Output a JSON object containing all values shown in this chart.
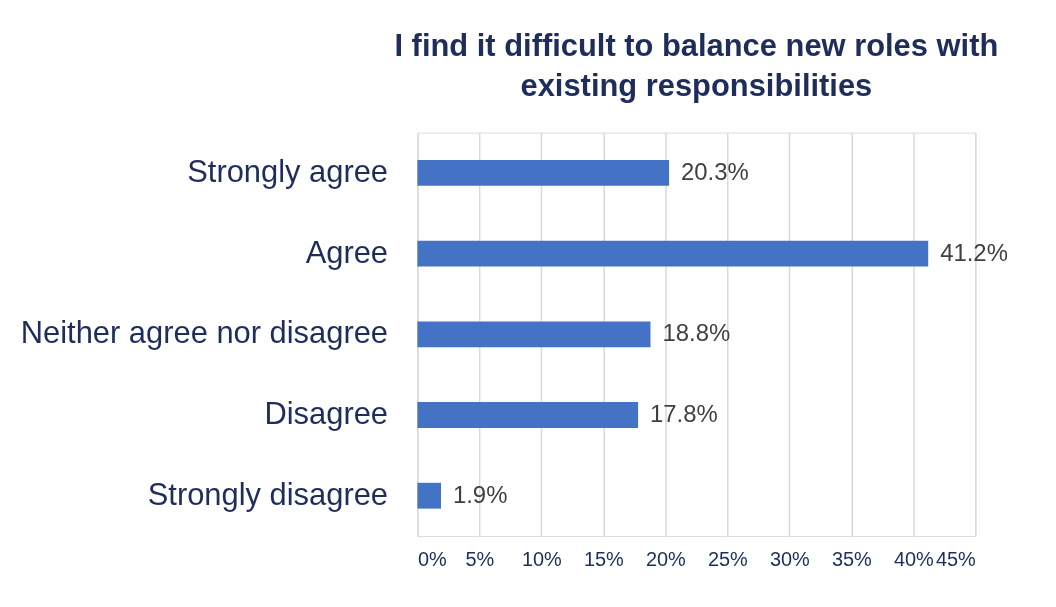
{
  "chart_data": {
    "type": "bar",
    "orientation": "horizontal",
    "title": "I find it difficult to balance new roles with existing responsibilities",
    "categories": [
      "Strongly agree",
      "Agree",
      "Neither agree nor disagree",
      "Disagree",
      "Strongly disagree"
    ],
    "values": [
      20.3,
      41.2,
      18.8,
      17.8,
      1.9
    ],
    "value_labels": [
      "20.3%",
      "41.2%",
      "18.8%",
      "17.8%",
      "1.9%"
    ],
    "color": "#4472c4",
    "xlim": [
      0,
      45
    ],
    "xticks": [
      {
        "value": 0,
        "label": "0%"
      },
      {
        "value": 5,
        "label": "5%"
      },
      {
        "value": 10,
        "label": "10%"
      },
      {
        "value": 15,
        "label": "15%"
      },
      {
        "value": 20,
        "label": "20%"
      },
      {
        "value": 25,
        "label": "25%"
      },
      {
        "value": 30,
        "label": "30%"
      },
      {
        "value": 35,
        "label": "35%"
      },
      {
        "value": 40,
        "label": "40%"
      },
      {
        "value": 45,
        "label": "45%"
      }
    ],
    "grid": "x"
  }
}
